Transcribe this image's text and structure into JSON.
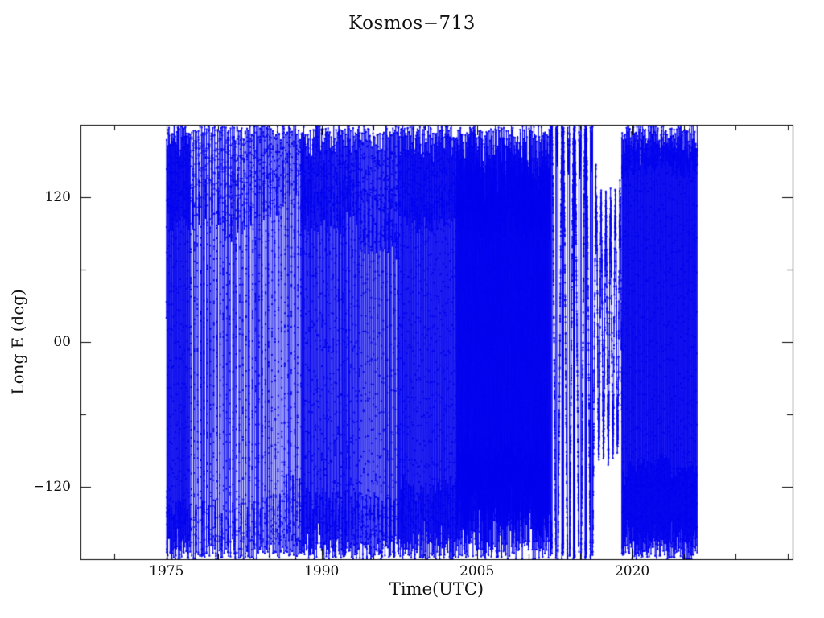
{
  "page": {
    "background": "#ffffff",
    "text_color": "#111111"
  },
  "chart_data": {
    "type": "line",
    "title": "Kosmos−713",
    "xlabel": "Time(UTC)",
    "ylabel": "Long E (deg)",
    "xlim": [
      1966.7,
      2035.5
    ],
    "ylim": [
      -180,
      180
    ],
    "grid": false,
    "legend": "none",
    "line_color": "#0000ee",
    "axis_color": "#000000",
    "marker": "square",
    "x_major_ticks": [
      {
        "value": 1975,
        "label": "1975"
      },
      {
        "value": 1990,
        "label": "1990"
      },
      {
        "value": 2005,
        "label": "2005"
      },
      {
        "value": 2020,
        "label": "2020"
      }
    ],
    "x_minor_tick_step": 5,
    "y_major_ticks": [
      {
        "value": 120,
        "label": "120"
      },
      {
        "value": 0,
        "label": "00"
      },
      {
        "value": -120,
        "label": "−120"
      }
    ],
    "y_minor_tick_step": 60,
    "series_model": {
      "description": "Sub-synchronous longitude drift of Kosmos-713 versus time; longitude wraps at ±180 deg producing full-height vertical sweep lines; dwell bands appear near sweep turning points. Segments encode observed density, band centers and coverage per era.",
      "start": 1975.0,
      "end": 2026.3,
      "dt": 0.004,
      "seed": 1975713,
      "segments": [
        {
          "from": 1975.0,
          "to": 1977.3,
          "center": -12,
          "amp": 238,
          "cycles_per_year": 4.5,
          "jitter": 10
        },
        {
          "from": 1977.3,
          "to": 1988.0,
          "center": -12,
          "amp": 238,
          "cycles_per_year": 1.6,
          "jitter": 9
        },
        {
          "from": 1988.0,
          "to": 1993.5,
          "center": -30,
          "amp": 240,
          "cycles_per_year": 3.2,
          "jitter": 16
        },
        {
          "from": 1993.5,
          "to": 1997.5,
          "center": -40,
          "amp": 250,
          "cycles_per_year": 2.6,
          "jitter": 12
        },
        {
          "from": 1997.5,
          "to": 2003.0,
          "center": -15,
          "amp": 245,
          "cycles_per_year": 4.2,
          "jitter": 12
        },
        {
          "from": 2003.0,
          "to": 2012.0,
          "center": 0,
          "amp": 265,
          "cycles_per_year": 8.5,
          "jitter": 15
        },
        {
          "from": 2012.0,
          "to": 2016.5,
          "center": 0,
          "amp": 200,
          "cycles_per_year": 0.9,
          "jitter": 12
        },
        {
          "from": 2016.5,
          "to": 2019.0,
          "center": 15,
          "amp": 95,
          "cycles_per_year": 2.2,
          "jitter": 22
        },
        {
          "from": 2019.0,
          "to": 2026.3,
          "center": 12,
          "amp": 233,
          "cycles_per_year": 5.5,
          "jitter": 9
        }
      ]
    }
  }
}
